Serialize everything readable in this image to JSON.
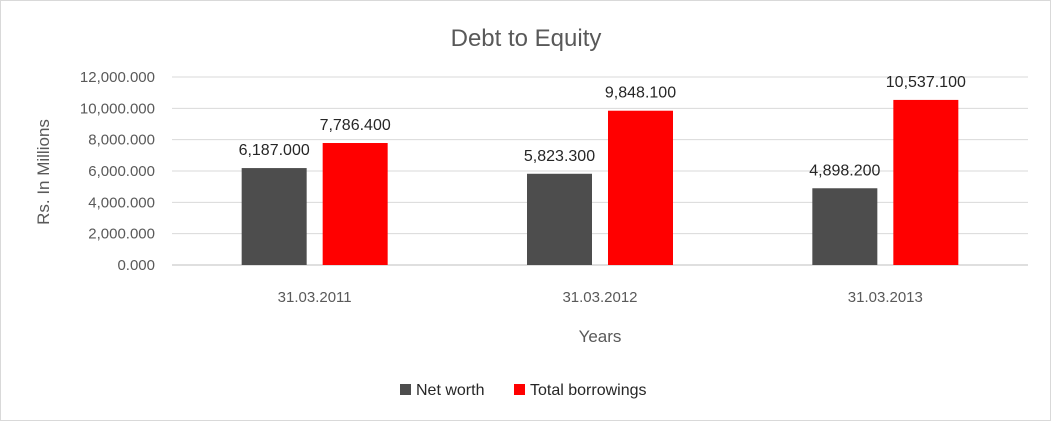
{
  "chart_data": {
    "type": "bar",
    "title": "Debt to Equity",
    "xlabel": "Years",
    "ylabel": "Rs. In Millions",
    "categories": [
      "31.03.2011",
      "31.03.2012",
      "31.03.2013"
    ],
    "series": [
      {
        "name": "Net worth",
        "color": "#4d4d4d",
        "values": [
          6187.0,
          5823.3,
          4898.2
        ],
        "labels": [
          "6,187.000",
          "5,823.300",
          "4,898.200"
        ]
      },
      {
        "name": "Total borrowings",
        "color": "#ff0000",
        "values": [
          7786.4,
          9848.1,
          10537.1
        ],
        "labels": [
          "7,786.400",
          "9,848.100",
          "10,537.100"
        ]
      }
    ],
    "ylim": [
      0,
      12000
    ],
    "yticks": [
      0,
      2000,
      4000,
      6000,
      8000,
      10000,
      12000
    ],
    "ytick_labels": [
      "0.000",
      "2,000.000",
      "4,000.000",
      "6,000.000",
      "8,000.000",
      "10,000.000",
      "12,000.000"
    ],
    "grid": true,
    "legend_position": "bottom"
  }
}
